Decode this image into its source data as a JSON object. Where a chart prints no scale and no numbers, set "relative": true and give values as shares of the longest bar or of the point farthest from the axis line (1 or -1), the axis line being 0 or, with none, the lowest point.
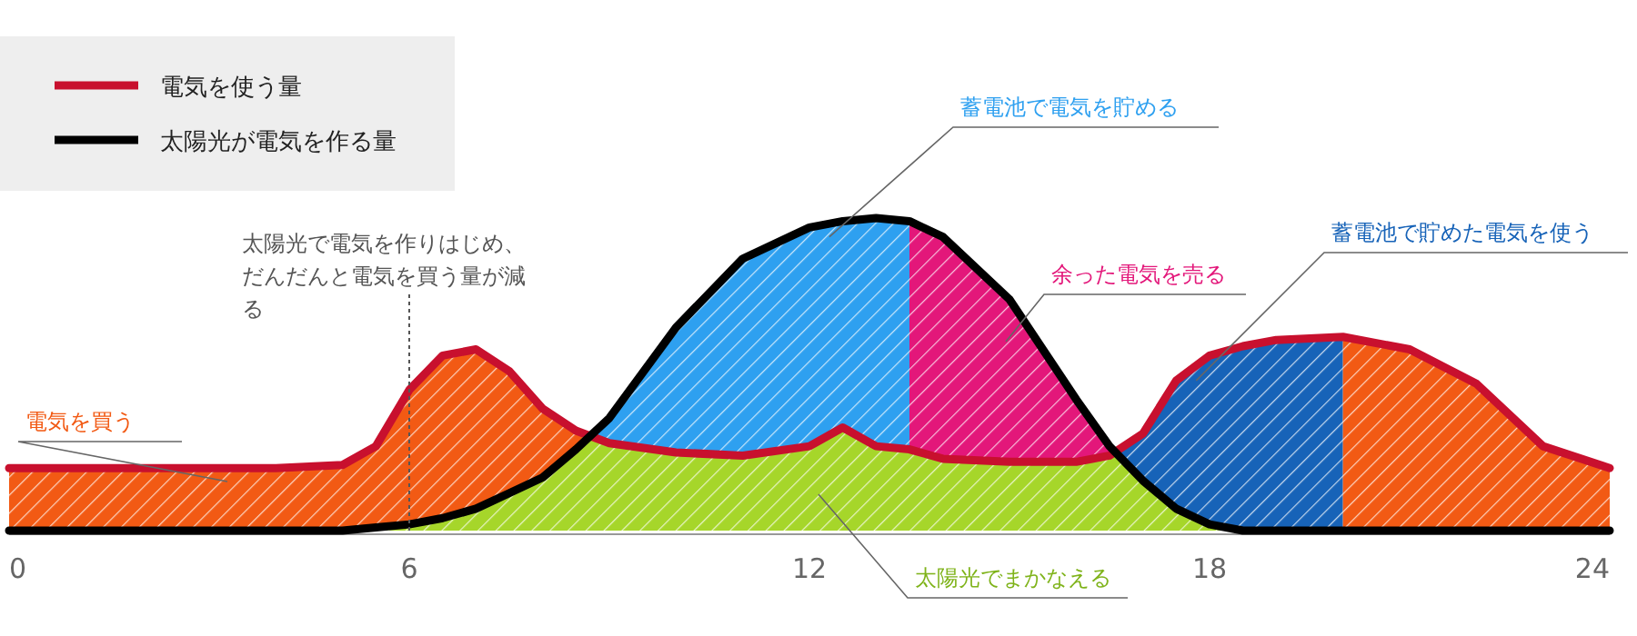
{
  "chart_data": {
    "type": "line",
    "relative": true,
    "x": [
      0,
      1,
      2,
      3,
      4,
      5,
      5.5,
      6,
      6.5,
      7,
      7.5,
      8,
      8.5,
      9,
      10,
      11,
      12,
      12.5,
      13,
      13.5,
      14,
      15,
      16,
      16.5,
      17,
      17.5,
      18,
      18.5,
      19,
      20,
      21,
      22,
      23,
      24
    ],
    "xlim": [
      0,
      24
    ],
    "xticks": [
      0,
      6,
      12,
      18,
      24
    ],
    "grid": false,
    "legend": "top left",
    "series": [
      {
        "type": "area",
        "color": "#f25a14",
        "x": [
          0,
          1,
          2,
          3,
          4,
          5,
          5.5,
          6,
          6.5,
          7,
          7.5,
          8,
          8.5,
          8.6
        ],
        "values": [
          0.2,
          0.2,
          0.2,
          0.2,
          0.2,
          0.21,
          0.27,
          0.45,
          0.56,
          0.58,
          0.51,
          0.39,
          0.32,
          0.3
        ]
      },
      {
        "type": "area",
        "color": "#2ea0f0",
        "x": [
          8.6,
          9,
          10,
          11,
          12,
          12.5,
          13,
          13.5
        ],
        "values": [
          0.3,
          0.36,
          0.65,
          0.87,
          0.97,
          0.99,
          1.0,
          0.99
        ]
      },
      {
        "type": "area",
        "color": "#e3177a",
        "x": [
          13.5,
          14,
          15,
          16,
          16.5,
          16.55
        ],
        "values": [
          0.99,
          0.94,
          0.74,
          0.42,
          0.27,
          0.25
        ]
      },
      {
        "type": "area",
        "color": "#1763b8",
        "x": [
          16.55,
          17,
          17.5,
          18,
          18.5,
          19,
          20
        ],
        "values": [
          0.25,
          0.31,
          0.48,
          0.56,
          0.59,
          0.61,
          0.62
        ]
      },
      {
        "type": "area",
        "color": "#f25a14",
        "x": [
          20,
          21,
          22,
          23,
          24
        ],
        "values": [
          0.62,
          0.58,
          0.47,
          0.27,
          0.2
        ]
      },
      {
        "type": "area",
        "color": "#a6d62a",
        "x": [
          5.5,
          6,
          6.5,
          7,
          7.5,
          8,
          8.5,
          8.6,
          9,
          10,
          11,
          12,
          12.5,
          13,
          13.5,
          14,
          15,
          16,
          16.5,
          16.55,
          17,
          17.5,
          18,
          18.5
        ],
        "values": [
          0.01,
          0.02,
          0.04,
          0.07,
          0.12,
          0.17,
          0.26,
          0.3,
          0.28,
          0.25,
          0.24,
          0.27,
          0.33,
          0.27,
          0.26,
          0.23,
          0.22,
          0.22,
          0.24,
          0.25,
          0.16,
          0.07,
          0.02,
          0
        ]
      },
      {
        "name": "電気を使う量",
        "color": "#c8102e",
        "values": [
          0.2,
          0.2,
          0.2,
          0.2,
          0.2,
          0.21,
          0.27,
          0.45,
          0.56,
          0.58,
          0.51,
          0.39,
          0.32,
          0.28,
          0.25,
          0.24,
          0.27,
          0.33,
          0.27,
          0.26,
          0.23,
          0.22,
          0.22,
          0.24,
          0.31,
          0.48,
          0.56,
          0.59,
          0.61,
          0.62,
          0.58,
          0.47,
          0.27,
          0.2
        ]
      },
      {
        "name": "太陽光が電気を作る量",
        "color": "#000000",
        "values": [
          0,
          0,
          0,
          0,
          0,
          0,
          0.01,
          0.02,
          0.04,
          0.07,
          0.12,
          0.17,
          0.26,
          0.36,
          0.65,
          0.87,
          0.97,
          0.99,
          1.0,
          0.99,
          0.94,
          0.74,
          0.42,
          0.27,
          0.16,
          0.07,
          0.02,
          0,
          0,
          0,
          0,
          0,
          0,
          0
        ]
      }
    ],
    "ref_lines": [
      {
        "axis": "x",
        "value": 6,
        "label": "太陽光で電気を作りはじめ、だんだんと電気を買う量が減る",
        "line_style": "dotted",
        "color": "#555555"
      }
    ],
    "annotations": [
      "電気を買う",
      {
        "text": "蓄電池で電気を貯める",
        "x": 12.3,
        "y": 0.94
      },
      "余った電気を売る",
      {
        "text": "蓄電池で貯めた電気を使う",
        "x": 17.8,
        "y": 0.48
      },
      "太陽光でまかなえる"
    ]
  }
}
